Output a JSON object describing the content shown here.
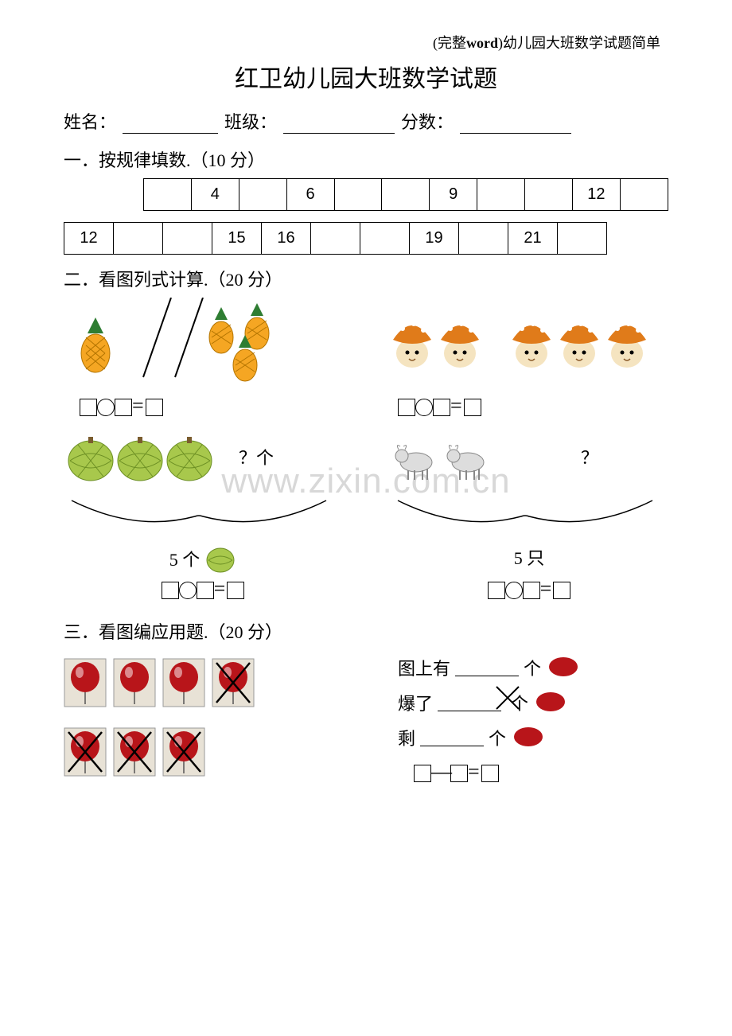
{
  "header": {
    "prefix": "(完整",
    "bold": "word",
    "suffix": ")幼儿园大班数学试题简单"
  },
  "title": "红卫幼儿园大班数学试题",
  "info": {
    "name_label": "姓名：",
    "class_label": "班级：",
    "score_label": "分数："
  },
  "watermark": "www.zixin.com.cn",
  "section1": {
    "heading": "一．按规律填数.（10 分）",
    "row1": [
      "",
      "4",
      "",
      "6",
      "",
      "",
      "9",
      "",
      "",
      "12",
      ""
    ],
    "row2": [
      "12",
      "",
      "",
      "15",
      "16",
      "",
      "",
      "19",
      "",
      "21",
      ""
    ]
  },
  "section2": {
    "heading": "二．看图列式计算.（20 分）",
    "question_unit_a": "？个",
    "question_unit_b": "？",
    "total_a": "5 个",
    "total_b": "5 只",
    "pineapple_color": "#f5a623",
    "pineapple_leaf": "#2e7d32",
    "mushroom_top": "#e07b1a",
    "mushroom_stem": "#f5e4c0",
    "melon_color": "#a8c84c",
    "goat_color": "#cccccc"
  },
  "section3": {
    "heading": "三．看图编应用题.（20 分）",
    "balloon_color": "#b8151a",
    "balloon_bg": "#e8e2d6",
    "row1_states": [
      "ok",
      "ok",
      "ok",
      "x"
    ],
    "row2_states": [
      "x",
      "x",
      "x"
    ],
    "line1_pre": "图上有",
    "line1_post": " 个",
    "line2_pre": "爆了",
    "line2_post": "个",
    "line3_pre": "剩",
    "line3_post": " 个"
  }
}
